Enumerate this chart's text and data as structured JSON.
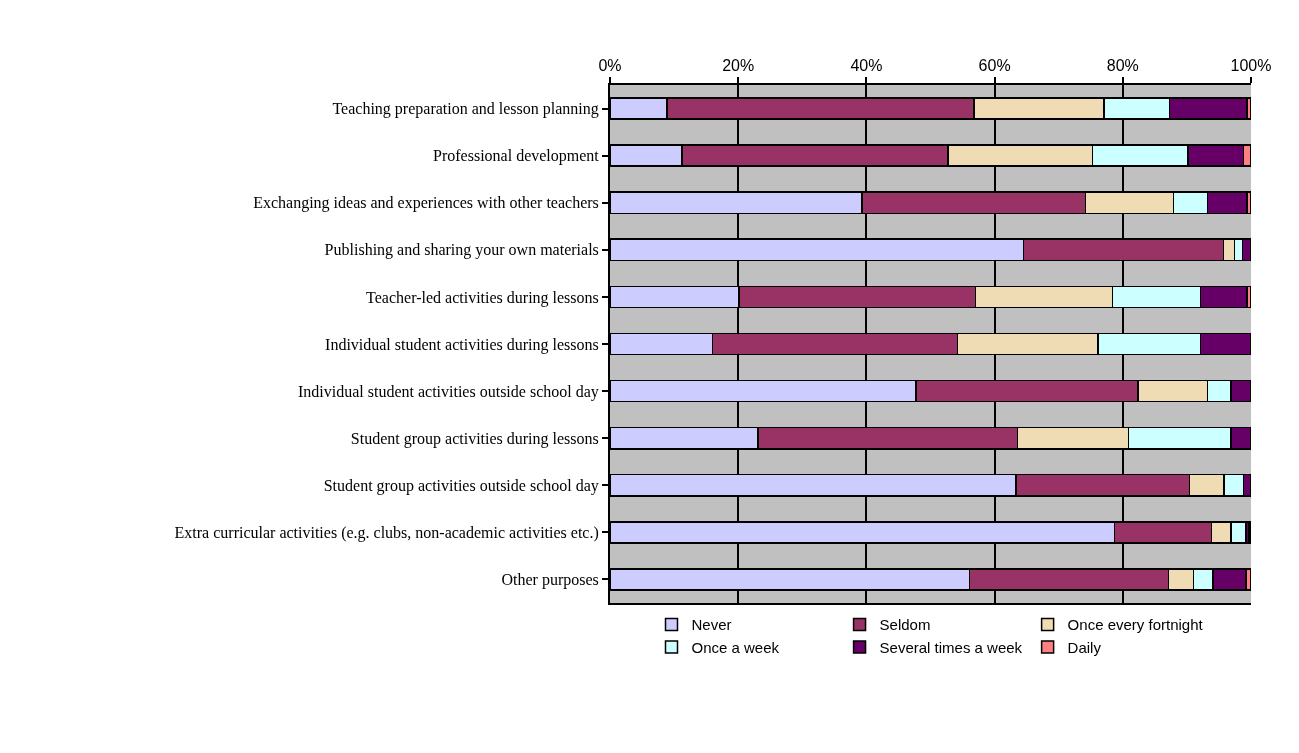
{
  "chart_data": {
    "type": "bar",
    "orientation": "horizontal",
    "stacked": true,
    "categories": [
      "Teaching preparation and lesson planning",
      "Professional development",
      "Exchanging ideas and experiences with other teachers",
      "Publishing and sharing your own materials",
      "Teacher-led activities during lessons",
      "Individual student activities during lessons",
      "Individual student activities outside school day",
      "Student group activities during lessons",
      "Student group activities outside school day",
      "Extra curricular activities (e.g. clubs, non-academic activities etc.)",
      "Other purposes"
    ],
    "series": [
      {
        "name": "Never",
        "color": "#ccccff",
        "values": [
          8.9,
          11.2,
          39.3,
          64.5,
          20.1,
          16.0,
          47.7,
          23.1,
          63.3,
          78.7,
          56.1
        ]
      },
      {
        "name": "Seldom",
        "color": "#993366",
        "values": [
          47.9,
          41.5,
          34.9,
          31.2,
          36.9,
          38.2,
          34.7,
          40.5,
          27.1,
          15.1,
          31.0
        ]
      },
      {
        "name": "Once every fortnight",
        "color": "#f0dcb4",
        "values": [
          20.3,
          22.6,
          13.7,
          1.7,
          21.4,
          21.9,
          10.8,
          17.3,
          5.4,
          3.1,
          3.9
        ]
      },
      {
        "name": "Once a week",
        "color": "#ccffff",
        "values": [
          10.2,
          14.9,
          5.3,
          1.3,
          13.7,
          16.0,
          3.7,
          16.0,
          3.0,
          2.3,
          3.1
        ]
      },
      {
        "name": "Several times a week",
        "color": "#660066",
        "values": [
          12.1,
          8.6,
          6.2,
          1.3,
          7.3,
          7.9,
          3.1,
          3.1,
          1.2,
          0.5,
          5.1
        ]
      },
      {
        "name": "Daily",
        "color": "#ff8080",
        "values": [
          0.6,
          1.2,
          0.6,
          0,
          0.6,
          0,
          0,
          0,
          0,
          0.3,
          0.8
        ]
      }
    ],
    "xlim": [
      0,
      100
    ],
    "xticks": [
      {
        "value": 0,
        "label": "0%"
      },
      {
        "value": 20,
        "label": "20%"
      },
      {
        "value": 40,
        "label": "40%"
      },
      {
        "value": 60,
        "label": "60%"
      },
      {
        "value": 80,
        "label": "80%"
      },
      {
        "value": 100,
        "label": "100%"
      }
    ],
    "grid": "x",
    "legend": "bottom"
  }
}
